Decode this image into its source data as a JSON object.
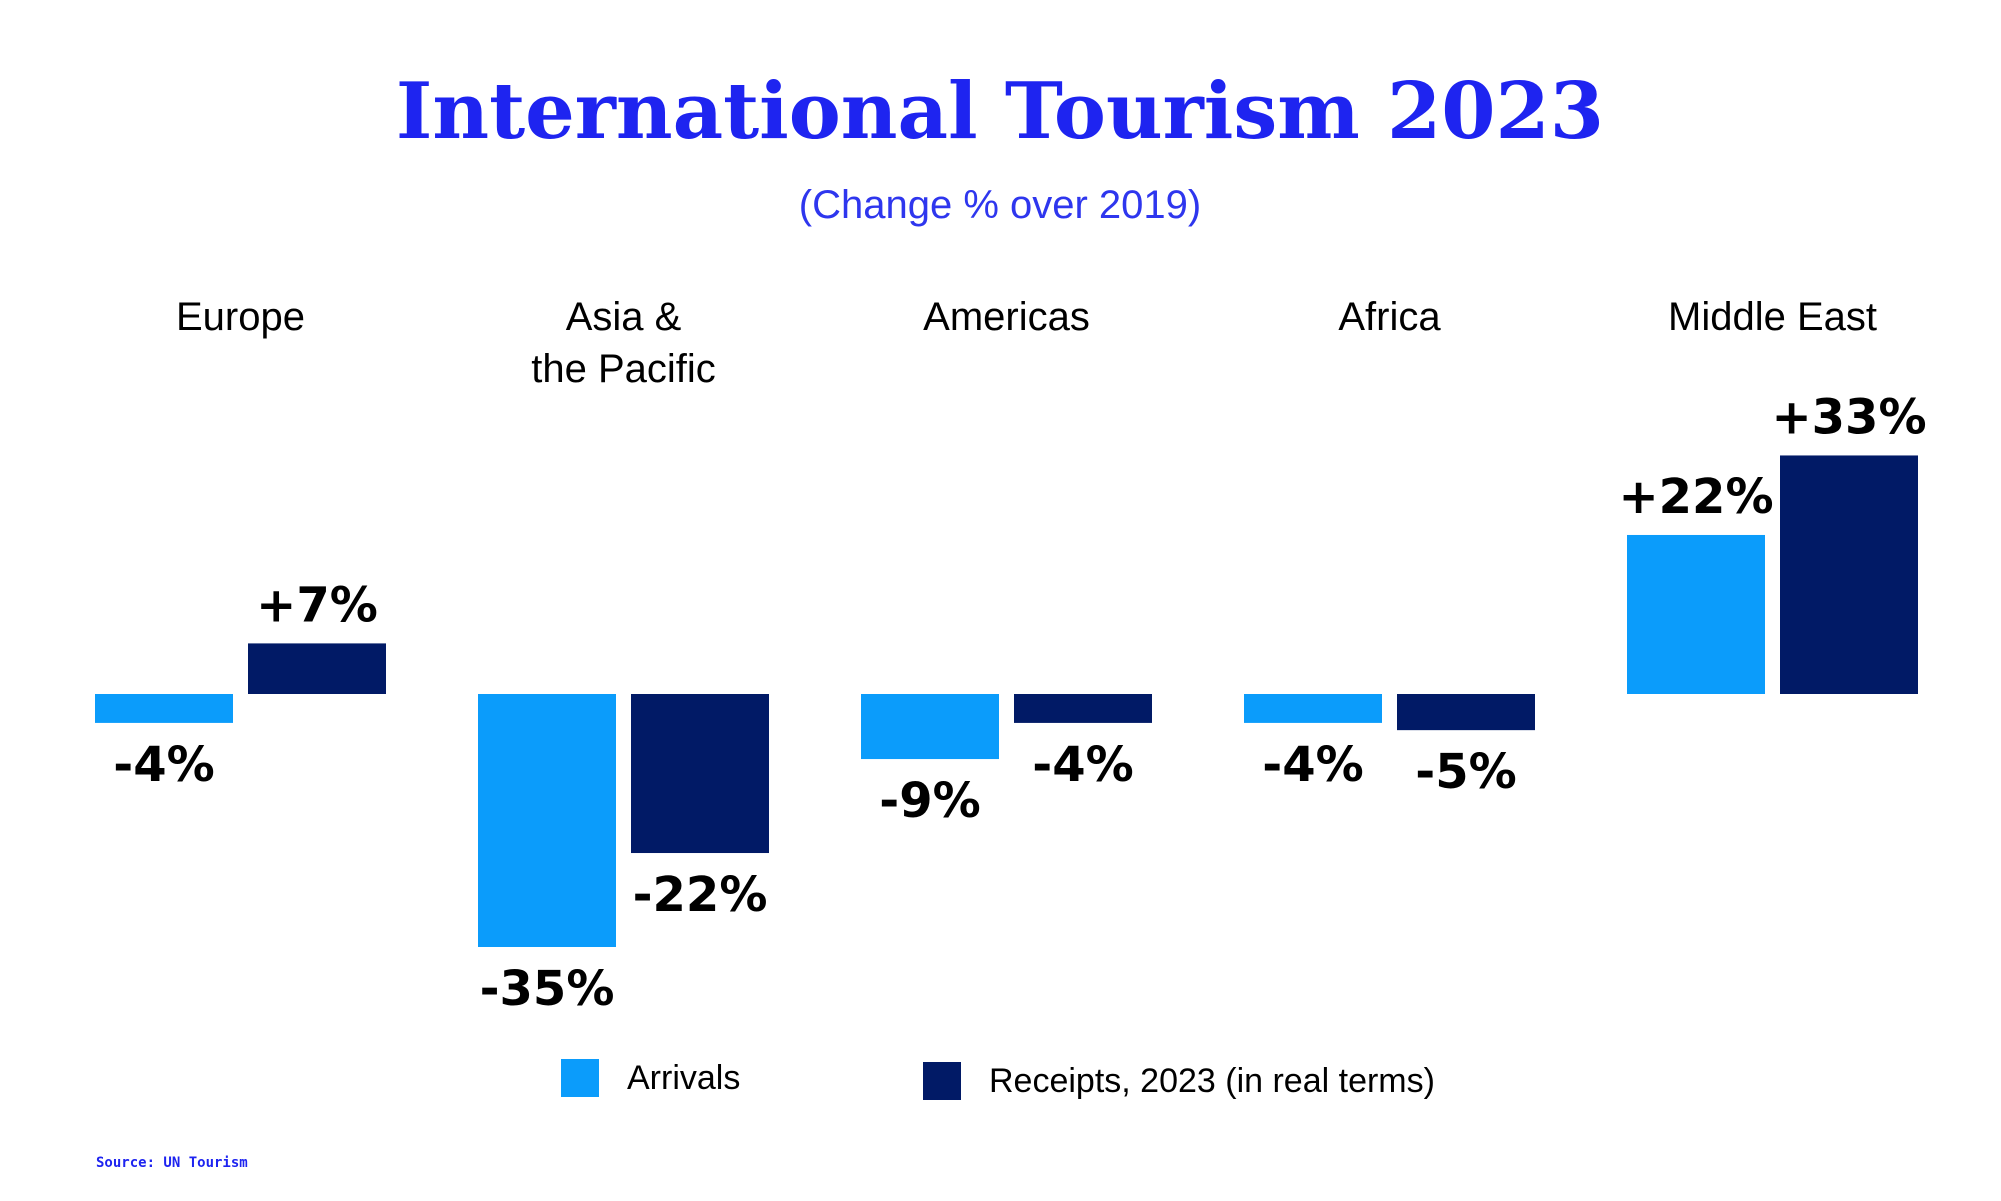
{
  "colors": {
    "title": "#1e24f0",
    "subtitle": "#2e36ee",
    "arrivals": "#0b9cfb",
    "receipts": "#011a66",
    "text": "#000000",
    "source": "#1e24f0"
  },
  "chart_data": {
    "type": "bar",
    "title": "International Tourism 2023",
    "subtitle": "(Change % over 2019)",
    "categories": [
      [
        "Europe"
      ],
      [
        "Asia &",
        "the Pacific"
      ],
      [
        "Americas"
      ],
      [
        "Africa"
      ],
      [
        "Middle East"
      ]
    ],
    "series": [
      {
        "name": "Arrivals",
        "color_key": "arrivals",
        "values": [
          -4,
          -35,
          -9,
          -4,
          22
        ],
        "labels": [
          "-4%",
          "-35%",
          "-9%",
          "-4%",
          "+22%"
        ]
      },
      {
        "name": "Receipts, 2023 (in real terms)",
        "color_key": "receipts",
        "values": [
          7,
          -22,
          -4,
          -5,
          33
        ],
        "labels": [
          "+7%",
          "-22%",
          "-4%",
          "-5%",
          "+33%"
        ]
      }
    ],
    "ylim": [
      -35,
      33
    ],
    "grid": false,
    "legend_position": "bottom"
  },
  "source": "Source: UN Tourism"
}
